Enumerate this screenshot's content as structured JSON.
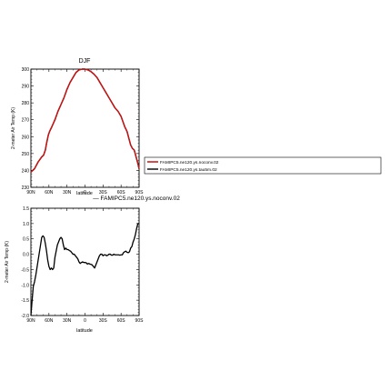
{
  "chart_data": [
    {
      "type": "line",
      "title": "DJF",
      "xlabel": "latitude",
      "ylabel": "2-meter Air Temp (K)",
      "xlim": [
        -90,
        90
      ],
      "ylim": [
        230,
        300
      ],
      "x_ticks": [
        -90,
        -60,
        -30,
        0,
        30,
        60,
        90
      ],
      "x_tick_labels": [
        "90N",
        "60N",
        "30N",
        "0",
        "30S",
        "60S",
        "90S"
      ],
      "y_ticks": [
        230,
        240,
        250,
        260,
        270,
        280,
        290,
        300
      ],
      "y_tick_labels": [
        "230",
        "240",
        "250",
        "260",
        "270",
        "280",
        "290",
        "300"
      ],
      "legend": {
        "placement": "right",
        "entries": [
          "FAMIPC5.ne120.ys.noconv.02",
          "FAMIPC5.ne120.ys.tau5m.02"
        ]
      },
      "series": [
        {
          "name": "FAMIPC5.ne120.ys.noconv.02",
          "color": "#cc1111",
          "x": [
            -90,
            -84,
            -78,
            -72,
            -69,
            -66,
            -64,
            -61,
            -59,
            -55,
            -50,
            -45,
            -40,
            -35,
            -30,
            -25,
            -20,
            -15,
            -10,
            -5,
            0,
            5,
            10,
            15,
            20,
            25,
            30,
            35,
            40,
            45,
            50,
            55,
            60,
            63,
            66,
            70,
            73,
            76,
            79,
            82,
            85,
            88,
            90
          ],
          "y": [
            239,
            241,
            245,
            248,
            249,
            252,
            256,
            261,
            263,
            266,
            270,
            275,
            279,
            283,
            288,
            292,
            295,
            298,
            299.5,
            300,
            300,
            299.5,
            298.5,
            297,
            295,
            292,
            289,
            286,
            283,
            280,
            277,
            275,
            272,
            269,
            266,
            263,
            259,
            255,
            253,
            252,
            248,
            244,
            241
          ]
        },
        {
          "name": "FAMIPC5.ne120.ys.tau5m.02",
          "color": "#111111",
          "x": [
            -90,
            -84,
            -78,
            -72,
            -69,
            -66,
            -64,
            -61,
            -59,
            -55,
            -50,
            -45,
            -40,
            -35,
            -30,
            -25,
            -20,
            -15,
            -10,
            -5,
            0,
            5,
            10,
            15,
            20,
            25,
            30,
            35,
            40,
            45,
            50,
            55,
            60,
            63,
            66,
            70,
            73,
            76,
            79,
            82,
            85,
            88,
            90
          ],
          "y": [
            239,
            241,
            245,
            248,
            249,
            252,
            256,
            261,
            263,
            266,
            270,
            275,
            279,
            283,
            288,
            292,
            295,
            298,
            299.5,
            300,
            300,
            299.5,
            298.5,
            297,
            295,
            292,
            289,
            286,
            283,
            280,
            277,
            275,
            272,
            269,
            266,
            263,
            259,
            255,
            253,
            252,
            248,
            244,
            241
          ]
        }
      ]
    },
    {
      "type": "line",
      "title": "— FAMIPC5.ne120.ys.noconv.02",
      "xlabel": "latitude",
      "ylabel": "2-meter Air Temp (K)",
      "xlim": [
        -90,
        90
      ],
      "ylim": [
        -2.0,
        1.5
      ],
      "x_ticks": [
        -90,
        -60,
        -30,
        0,
        30,
        60,
        90
      ],
      "x_tick_labels": [
        "90N",
        "60N",
        "30N",
        "0",
        "30S",
        "60S",
        "90S"
      ],
      "y_ticks": [
        -2.0,
        -1.5,
        -1.0,
        -0.5,
        0.0,
        0.5,
        1.0,
        1.5
      ],
      "y_tick_labels": [
        "-2.0",
        "-1.5",
        "-1.0",
        "-0.5",
        "0.0",
        "0.5",
        "1.0",
        "1.5"
      ],
      "series": [
        {
          "color": "#000000",
          "x": [
            -90,
            -88,
            -86,
            -84,
            -82,
            -80,
            -78,
            -76,
            -74,
            -72,
            -70,
            -68,
            -66,
            -64,
            -62,
            -60,
            -58,
            -56,
            -54,
            -52,
            -50,
            -48,
            -46,
            -44,
            -42,
            -40,
            -38,
            -36,
            -34,
            -32,
            -30,
            -28,
            -26,
            -24,
            -22,
            -20,
            -18,
            -16,
            -14,
            -12,
            -10,
            -8,
            -6,
            -4,
            -2,
            0,
            2,
            4,
            6,
            8,
            10,
            12,
            14,
            16,
            18,
            20,
            22,
            24,
            26,
            28,
            30,
            32,
            34,
            36,
            38,
            40,
            42,
            44,
            46,
            48,
            50,
            52,
            54,
            56,
            58,
            60,
            62,
            64,
            66,
            68,
            70,
            72,
            74,
            76,
            78,
            80,
            82,
            84,
            86,
            88,
            90
          ],
          "y": [
            -2.0,
            -1.5,
            -1.05,
            -0.9,
            -0.7,
            -0.45,
            -0.2,
            0.05,
            0.3,
            0.55,
            0.6,
            0.55,
            0.35,
            0.1,
            -0.2,
            -0.4,
            -0.5,
            -0.45,
            -0.5,
            -0.45,
            -0.1,
            0.1,
            0.3,
            0.4,
            0.5,
            0.55,
            0.5,
            0.3,
            0.15,
            0.2,
            0.15,
            0.15,
            0.12,
            0.1,
            0.05,
            0.0,
            0.0,
            -0.05,
            -0.1,
            -0.15,
            -0.25,
            -0.3,
            -0.27,
            -0.25,
            -0.27,
            -0.27,
            -0.28,
            -0.32,
            -0.3,
            -0.32,
            -0.33,
            -0.35,
            -0.4,
            -0.45,
            -0.35,
            -0.25,
            -0.15,
            -0.05,
            0.0,
            0.0,
            -0.05,
            -0.02,
            -0.02,
            -0.05,
            -0.03,
            0.0,
            0.0,
            -0.03,
            -0.03,
            0.0,
            -0.02,
            -0.02,
            -0.02,
            -0.02,
            -0.03,
            -0.02,
            -0.02,
            0.05,
            0.08,
            0.1,
            0.06,
            0.05,
            0.08,
            0.2,
            0.25,
            0.4,
            0.5,
            0.65,
            0.85,
            1.0,
            1.0
          ]
        }
      ]
    }
  ]
}
